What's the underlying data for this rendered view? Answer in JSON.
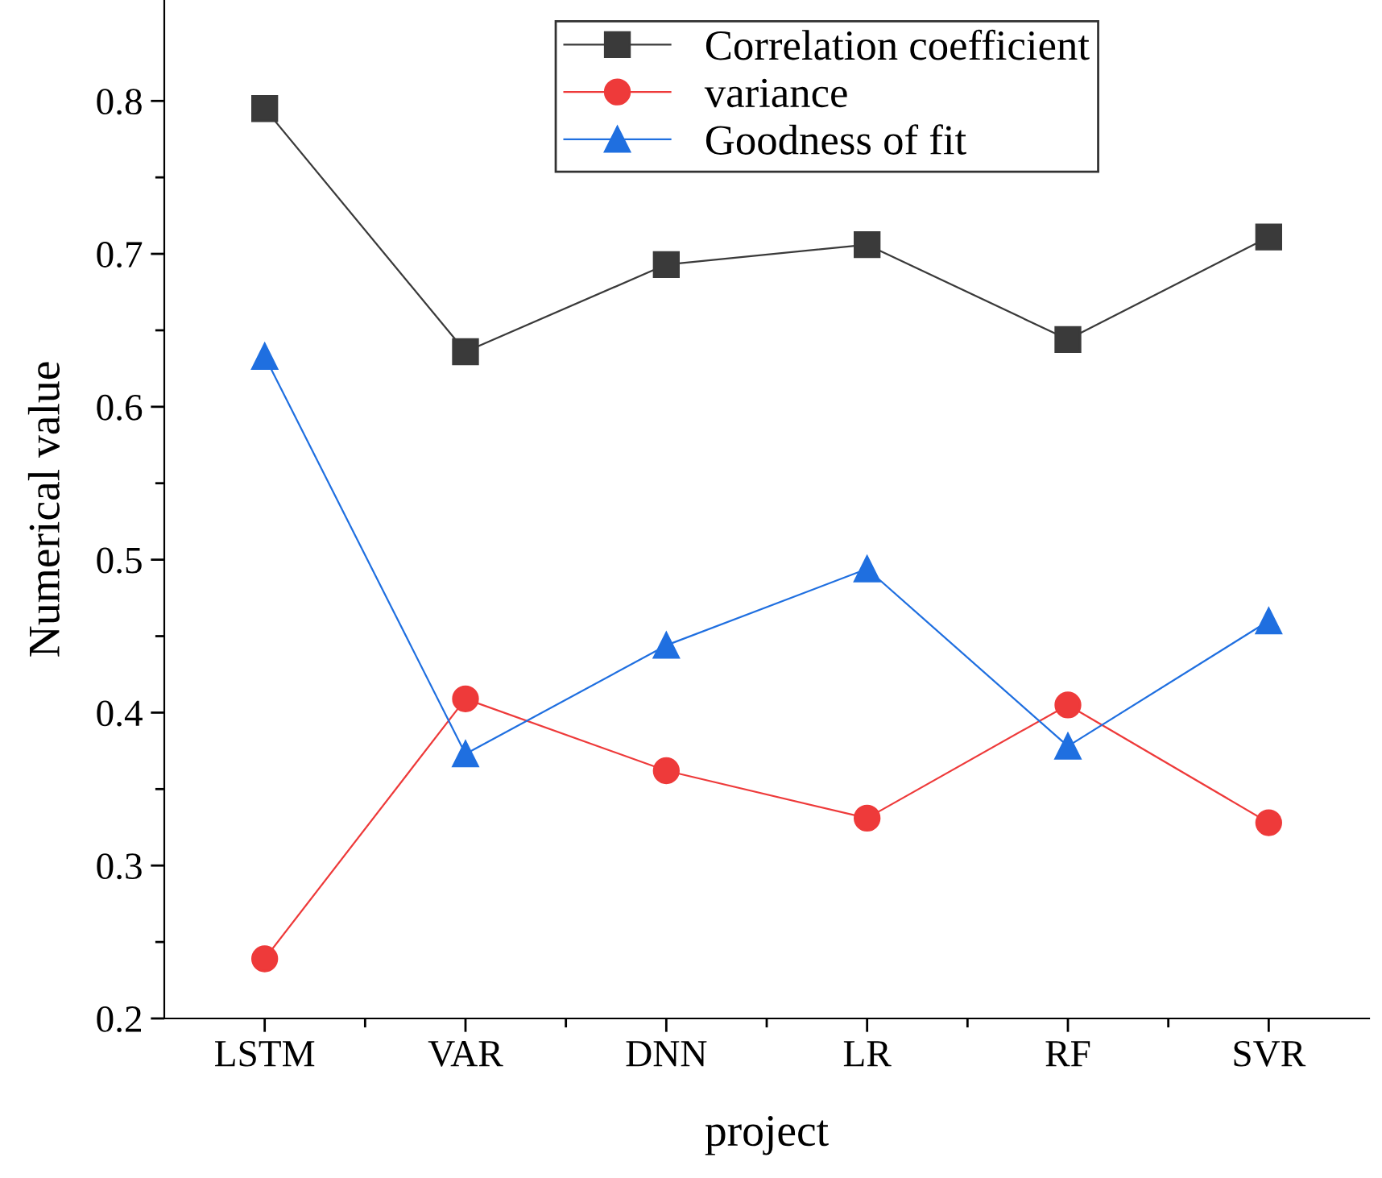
{
  "chart_data": {
    "type": "line",
    "xlabel": "project",
    "ylabel": "Numerical value",
    "categories": [
      "LSTM",
      "VAR",
      "DNN",
      "LR",
      "RF",
      "SVR"
    ],
    "series": [
      {
        "name": "Correlation coefficient",
        "color": "#3a3a3a",
        "marker": "square",
        "values": [
          0.795,
          0.636,
          0.693,
          0.706,
          0.644,
          0.711
        ]
      },
      {
        "name": "variance",
        "color": "#ee3a3a",
        "marker": "circle",
        "values": [
          0.239,
          0.409,
          0.362,
          0.331,
          0.405,
          0.328
        ]
      },
      {
        "name": "Goodness of fit",
        "color": "#1f6fe0",
        "marker": "triangle",
        "values": [
          0.633,
          0.373,
          0.444,
          0.494,
          0.378,
          0.46
        ]
      }
    ],
    "ylim": [
      0.2,
      0.866
    ],
    "yticks": [
      0.2,
      0.3,
      0.4,
      0.5,
      0.6,
      0.7,
      0.8
    ],
    "grid": false,
    "legend": "top",
    "line_style": "solid"
  }
}
